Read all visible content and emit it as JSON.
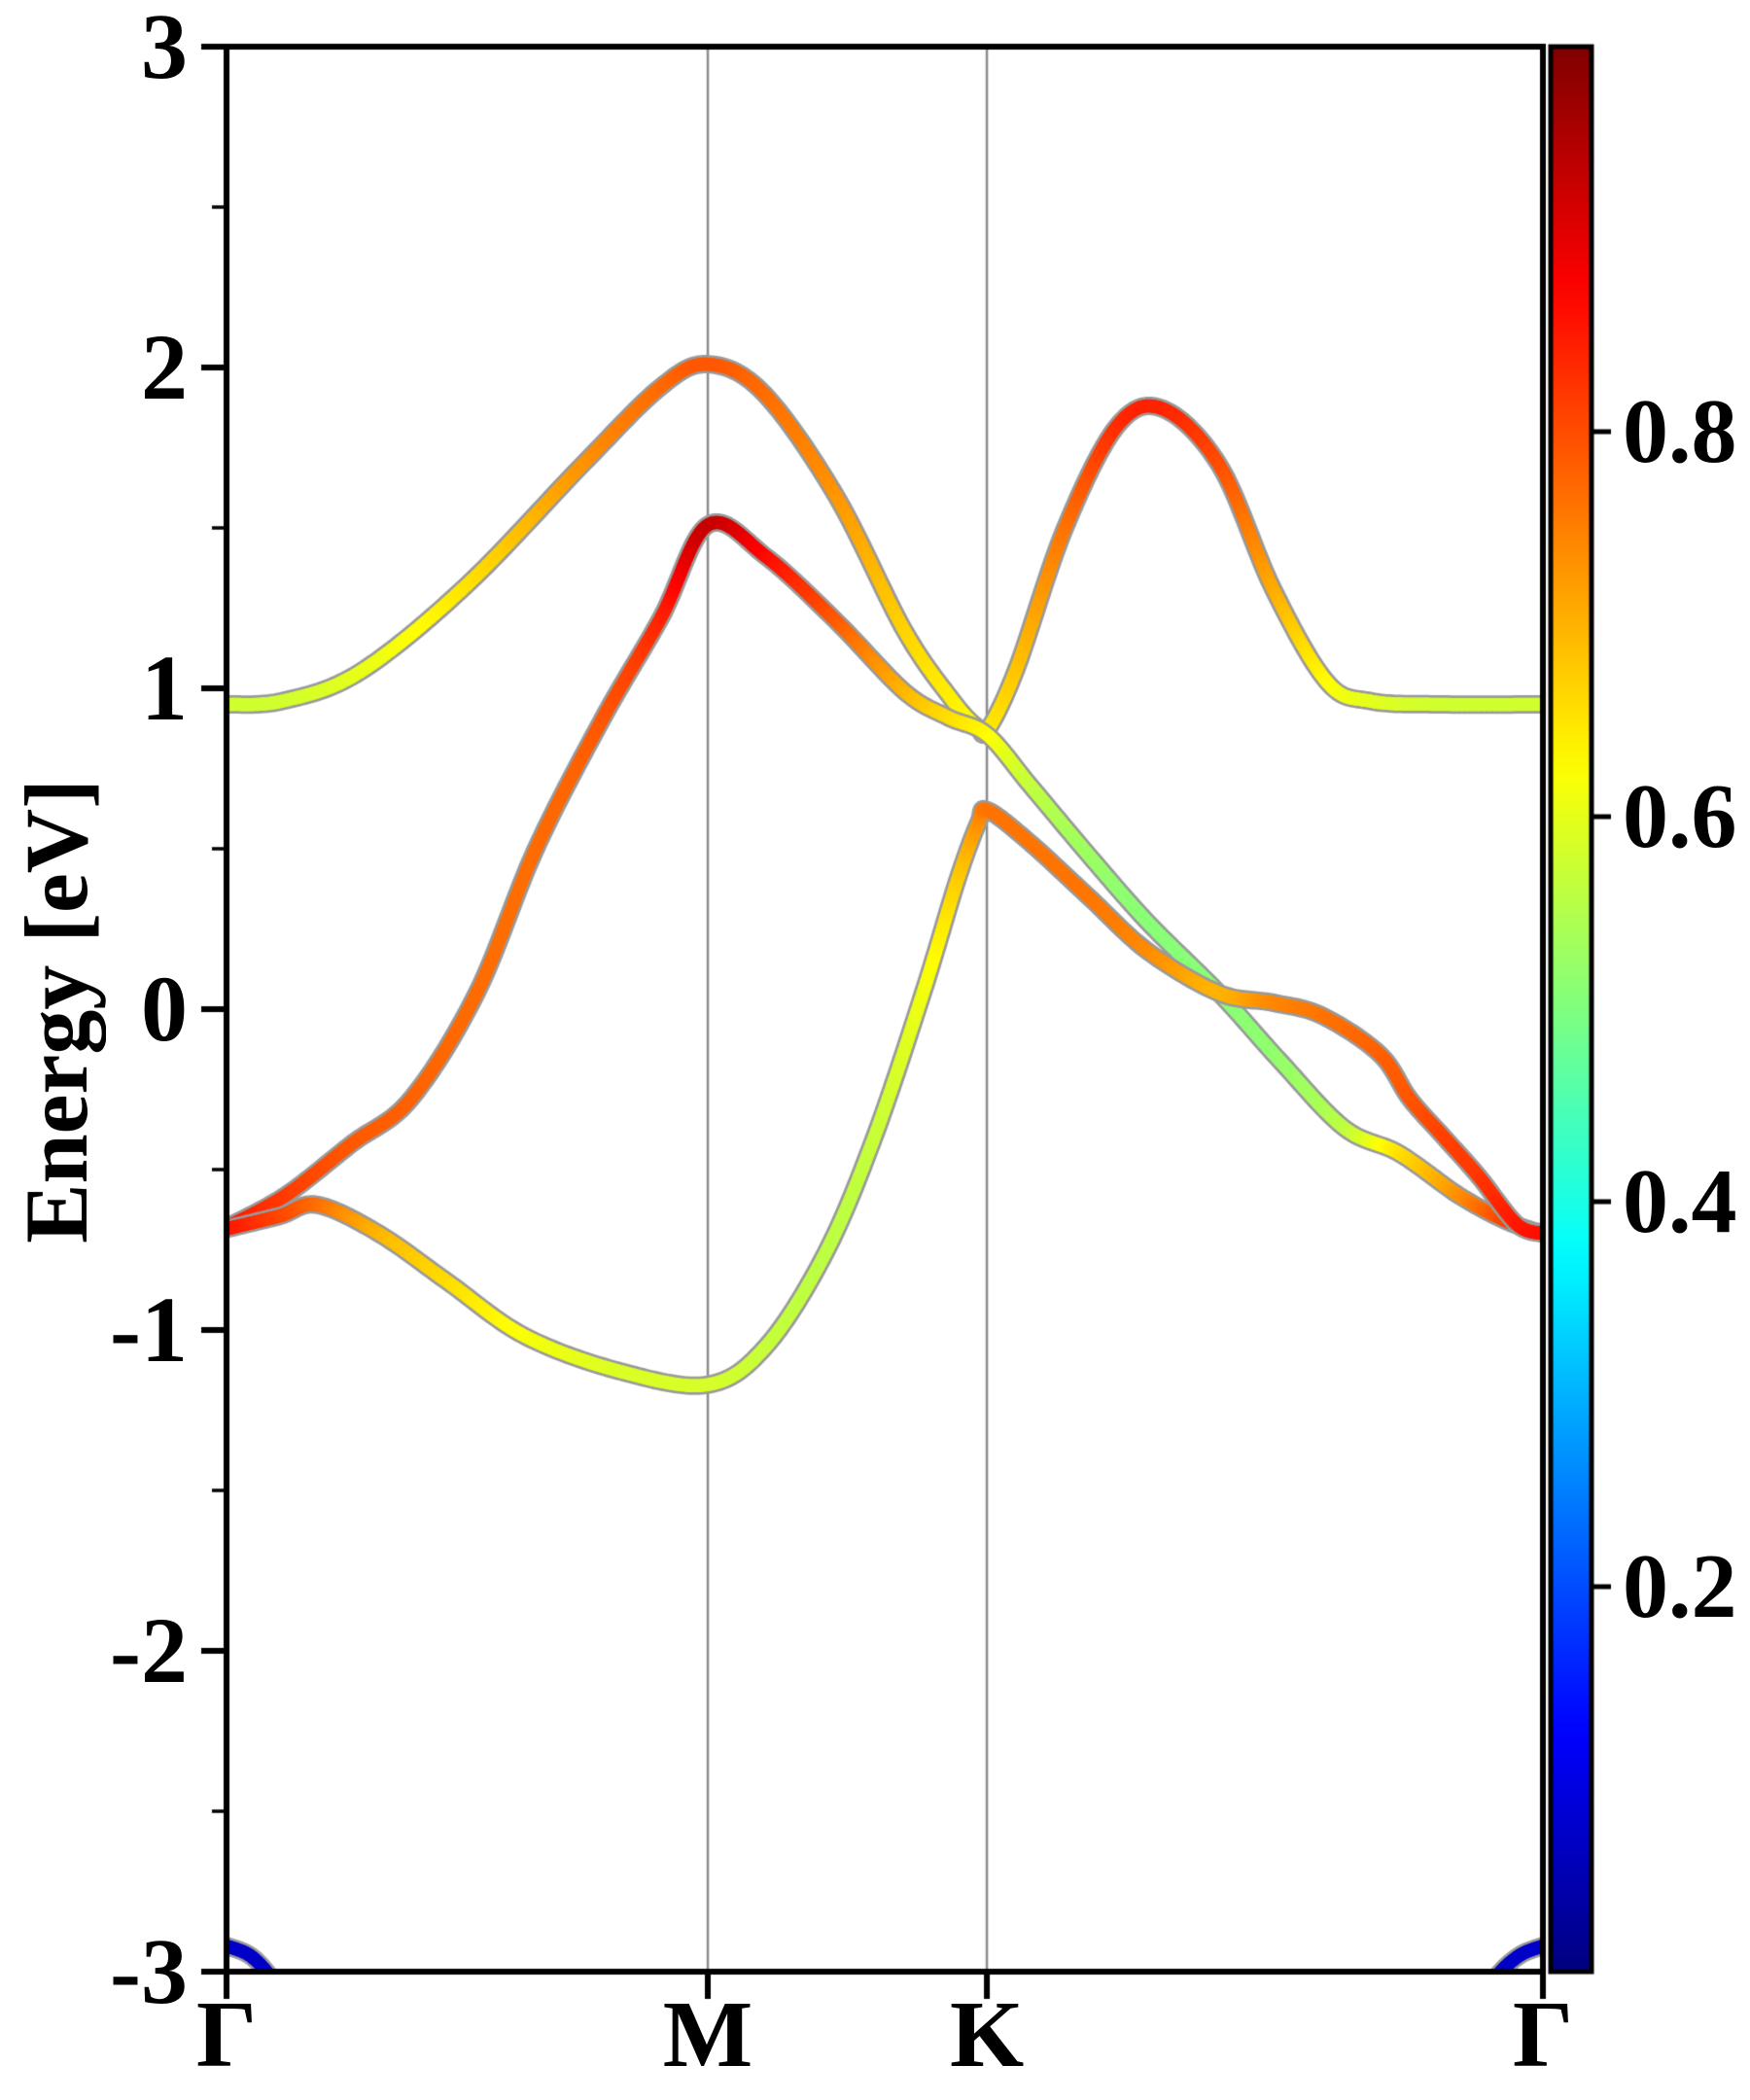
{
  "figure": {
    "background": "#ffffff"
  },
  "axes": {
    "ylabel": "Energy [eV]",
    "ylim": [
      -3,
      3
    ],
    "yticks": [
      {
        "value": 3,
        "label": "3"
      },
      {
        "value": 2,
        "label": "2"
      },
      {
        "value": 1,
        "label": "1"
      },
      {
        "value": 0,
        "label": "0"
      },
      {
        "value": -1,
        "label": "-1"
      },
      {
        "value": -2,
        "label": "-2"
      },
      {
        "value": -3,
        "label": "-3"
      }
    ],
    "yminor_step": 0.5,
    "xticks": [
      {
        "label": "Γ",
        "pos": 0.0
      },
      {
        "label": "M",
        "pos": 0.3656
      },
      {
        "label": "K",
        "pos": 0.5776
      },
      {
        "label": "Γ",
        "pos": 1.0
      }
    ],
    "gridline_positions": [
      0.3656,
      0.5776
    ],
    "spine_color": "#000000",
    "grid_color": "#8c8c8c"
  },
  "colorbar": {
    "range": [
      0,
      1
    ],
    "colormap": "jet",
    "ticks": [
      {
        "value": 0.8,
        "label": "0.8"
      },
      {
        "value": 0.6,
        "label": "0.6"
      },
      {
        "value": 0.4,
        "label": "0.4"
      },
      {
        "value": 0.2,
        "label": "0.2"
      }
    ],
    "gradient_stops": [
      [
        "0.000",
        "#000080"
      ],
      [
        "0.125",
        "#0000ff"
      ],
      [
        "0.375",
        "#00ffff"
      ],
      [
        "0.625",
        "#ffff00"
      ],
      [
        "0.875",
        "#ff0000"
      ],
      [
        "1.000",
        "#800000"
      ]
    ]
  },
  "chart_data": {
    "type": "line",
    "title": "",
    "xlabel": "",
    "ylabel": "Energy [eV]",
    "ylim": [
      -3,
      3
    ],
    "x_units": "k-path fraction along Γ–M–K–Γ (Γ=0, M=0.3656, K=0.5776, Γ=1)",
    "description": "Electronic band structure along Γ–M–K–Γ; line color encodes orbital weight (jet colormap, range 0–1)",
    "band_outline_color": "#9a9a9a",
    "bands": [
      {
        "name": "band-1-upper",
        "points": [
          [
            0.0,
            0.95,
            0.58
          ],
          [
            0.042,
            0.96,
            0.58
          ],
          [
            0.101,
            1.05,
            0.6
          ],
          [
            0.182,
            1.32,
            0.65
          ],
          [
            0.271,
            1.7,
            0.73
          ],
          [
            0.33,
            1.94,
            0.77
          ],
          [
            0.366,
            2.01,
            0.79
          ],
          [
            0.408,
            1.92,
            0.77
          ],
          [
            0.463,
            1.6,
            0.73
          ],
          [
            0.515,
            1.18,
            0.67
          ],
          [
            0.552,
            0.96,
            0.64
          ],
          [
            0.57,
            0.88,
            0.63
          ],
          [
            0.578,
            0.87,
            0.64
          ],
          [
            0.6,
            1.06,
            0.68
          ],
          [
            0.637,
            1.5,
            0.76
          ],
          [
            0.677,
            1.82,
            0.83
          ],
          [
            0.712,
            1.87,
            0.84
          ],
          [
            0.755,
            1.69,
            0.8
          ],
          [
            0.795,
            1.31,
            0.71
          ],
          [
            0.836,
            1.02,
            0.63
          ],
          [
            0.869,
            0.96,
            0.6
          ],
          [
            0.921,
            0.95,
            0.58
          ],
          [
            1.0,
            0.95,
            0.58
          ]
        ]
      },
      {
        "name": "band-2-middle",
        "points": [
          [
            0.0,
            -0.68,
            0.86
          ],
          [
            0.045,
            -0.58,
            0.82
          ],
          [
            0.095,
            -0.42,
            0.79
          ],
          [
            0.14,
            -0.28,
            0.78
          ],
          [
            0.19,
            0.05,
            0.77
          ],
          [
            0.235,
            0.5,
            0.77
          ],
          [
            0.285,
            0.9,
            0.79
          ],
          [
            0.33,
            1.22,
            0.84
          ],
          [
            0.366,
            1.51,
            0.93
          ],
          [
            0.41,
            1.41,
            0.87
          ],
          [
            0.463,
            1.21,
            0.79
          ],
          [
            0.515,
            0.99,
            0.7
          ],
          [
            0.548,
            0.91,
            0.66
          ],
          [
            0.578,
            0.855,
            0.63
          ],
          [
            0.61,
            0.7,
            0.57
          ],
          [
            0.655,
            0.48,
            0.53
          ],
          [
            0.7,
            0.27,
            0.51
          ],
          [
            0.754,
            0.05,
            0.51
          ],
          [
            0.8,
            -0.16,
            0.52
          ],
          [
            0.849,
            -0.37,
            0.56
          ],
          [
            0.891,
            -0.45,
            0.65
          ],
          [
            0.936,
            -0.58,
            0.73
          ],
          [
            0.972,
            -0.66,
            0.81
          ],
          [
            1.0,
            -0.7,
            0.86
          ]
        ]
      },
      {
        "name": "band-3-lower",
        "points": [
          [
            0.0,
            -0.685,
            0.86
          ],
          [
            0.04,
            -0.645,
            0.81
          ],
          [
            0.069,
            -0.61,
            0.77
          ],
          [
            0.116,
            -0.7,
            0.7
          ],
          [
            0.168,
            -0.85,
            0.66
          ],
          [
            0.227,
            -1.02,
            0.62
          ],
          [
            0.3,
            -1.13,
            0.59
          ],
          [
            0.366,
            -1.17,
            0.585
          ],
          [
            0.41,
            -1.05,
            0.57
          ],
          [
            0.455,
            -0.76,
            0.56
          ],
          [
            0.492,
            -0.4,
            0.57
          ],
          [
            0.529,
            0.05,
            0.61
          ],
          [
            0.555,
            0.4,
            0.67
          ],
          [
            0.571,
            0.58,
            0.73
          ],
          [
            0.578,
            0.62,
            0.76
          ],
          [
            0.61,
            0.52,
            0.76
          ],
          [
            0.655,
            0.35,
            0.76
          ],
          [
            0.7,
            0.18,
            0.74
          ],
          [
            0.754,
            0.05,
            0.7
          ],
          [
            0.795,
            0.02,
            0.74
          ],
          [
            0.832,
            -0.02,
            0.76
          ],
          [
            0.876,
            -0.14,
            0.78
          ],
          [
            0.899,
            -0.28,
            0.79
          ],
          [
            0.925,
            -0.4,
            0.81
          ],
          [
            0.951,
            -0.52,
            0.82
          ],
          [
            0.98,
            -0.67,
            0.85
          ],
          [
            1.0,
            -0.7,
            0.86
          ]
        ]
      },
      {
        "name": "band-4-bottom-left-arc",
        "points": [
          [
            0.0,
            -2.92,
            0.07
          ],
          [
            0.018,
            -2.95,
            0.07
          ],
          [
            0.034,
            -3.02,
            0.07
          ],
          [
            0.052,
            -3.14,
            0.07
          ]
        ]
      },
      {
        "name": "band-4-bottom-right-arc",
        "points": [
          [
            0.948,
            -3.14,
            0.07
          ],
          [
            0.964,
            -3.02,
            0.07
          ],
          [
            0.982,
            -2.95,
            0.07
          ],
          [
            1.0,
            -2.92,
            0.07
          ]
        ]
      }
    ]
  }
}
